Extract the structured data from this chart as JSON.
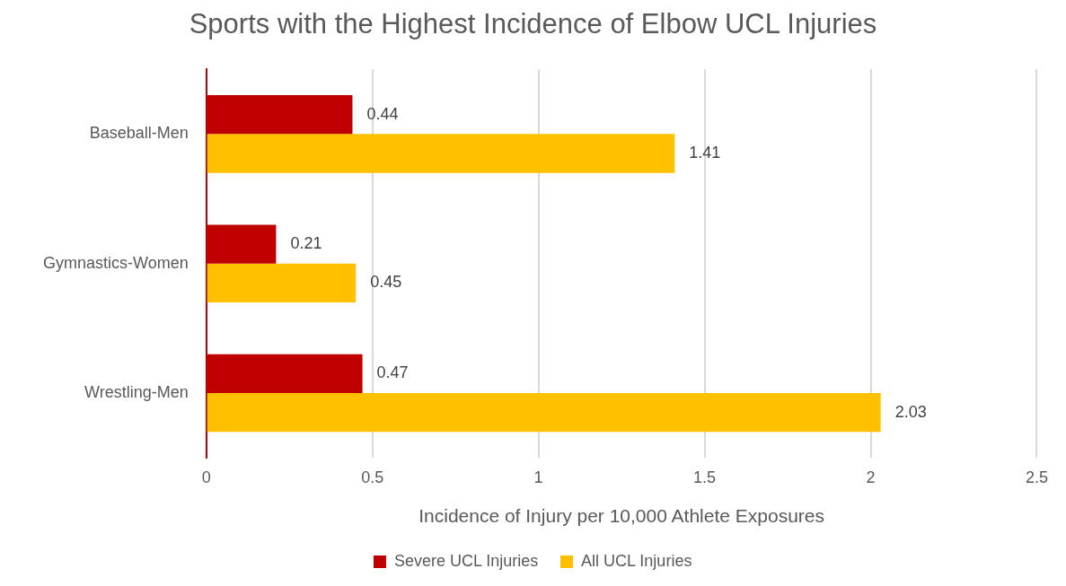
{
  "chart_data": {
    "type": "bar",
    "orientation": "horizontal",
    "title": "Sports with the Highest Incidence of Elbow UCL Injuries",
    "xlabel": "Incidence of Injury per 10,000 Athlete Exposures",
    "categories": [
      "Baseball-Men",
      "Gymnastics-Women",
      "Wrestling-Men"
    ],
    "series": [
      {
        "name": "Severe UCL Injuries",
        "color": "#c00000",
        "values": [
          0.44,
          0.21,
          0.47
        ]
      },
      {
        "name": "All UCL Injuries",
        "color": "#ffc000",
        "values": [
          1.41,
          0.45,
          2.03
        ]
      }
    ],
    "xlim": [
      0,
      2.5
    ],
    "xticks": [
      0,
      0.5,
      1,
      1.5,
      2,
      2.5
    ],
    "grid": "x",
    "legend": "bottom",
    "data_labels": true
  }
}
